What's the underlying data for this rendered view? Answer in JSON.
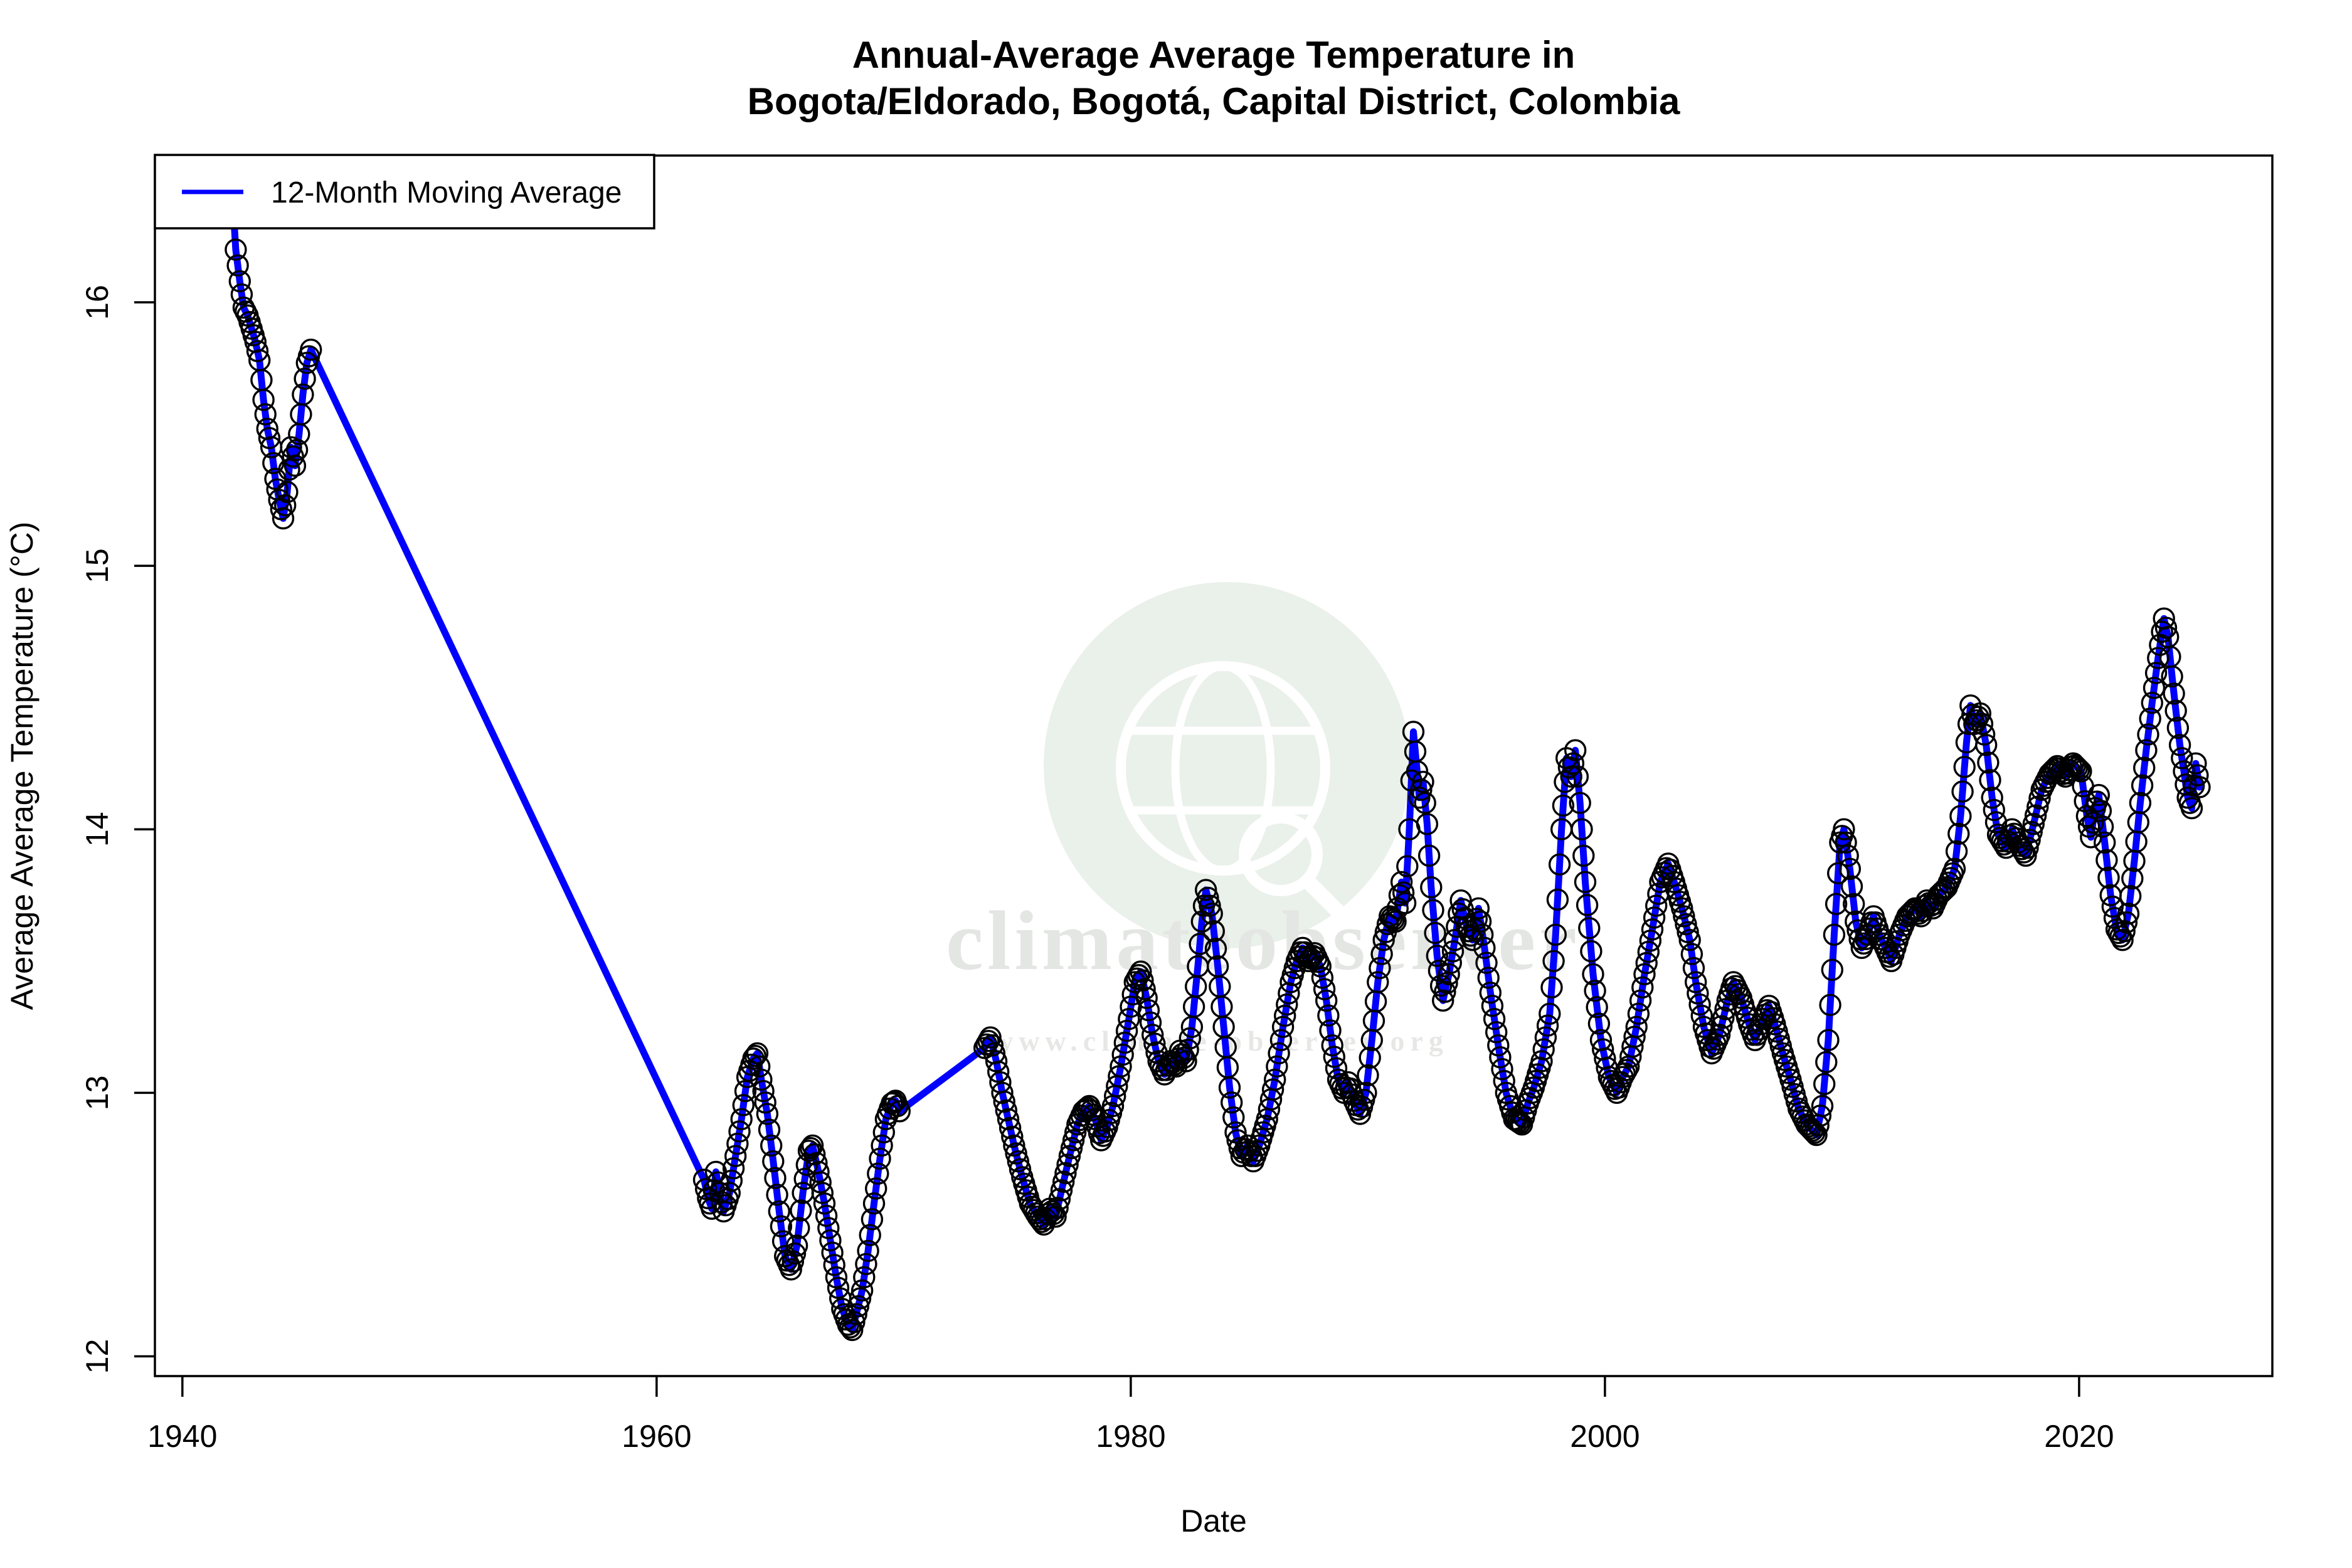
{
  "title": {
    "line1": "Annual-Average Average Temperature in",
    "line2": "Bogota/Eldorado, Bogotá, Capital District, Colombia"
  },
  "x_axis": {
    "label": "Date",
    "ticks": [
      1940,
      1960,
      1980,
      2000,
      2020
    ]
  },
  "y_axis": {
    "label": "Average Average Temperature (°C)",
    "ticks": [
      12,
      13,
      14,
      15,
      16
    ]
  },
  "legend": {
    "label": "12-Month Moving Average",
    "line_color": "#0000ff"
  },
  "watermark": {
    "text": "climateobserver",
    "url": "www.climate-observer.org",
    "icon": "globe-search-icon",
    "circle_fill": "#eaf0ea"
  },
  "style": {
    "series_color": "#0000ff",
    "marker_color": "#000000",
    "marker": "open-circle",
    "axis_color": "#000000"
  },
  "chart_data": {
    "type": "line",
    "title": "Annual-Average Average Temperature in Bogota/Eldorado, Bogotá, Capital District, Colombia",
    "xlabel": "Date",
    "ylabel": "Average Average Temperature (°C)",
    "xlim": [
      1938.84,
      2028.15
    ],
    "ylim": [
      11.925,
      16.557
    ],
    "x_ticks": [
      1940,
      1960,
      1980,
      2000,
      2020
    ],
    "y_ticks": [
      12,
      13,
      14,
      15,
      16
    ],
    "grid": false,
    "legend_position": "topleft",
    "series_name": "12-Month Moving Average",
    "marker_interval_years": 0.0833,
    "segments": [
      {
        "points": [
          [
            1942.08,
            16.45
          ],
          [
            1942.25,
            16.2
          ],
          [
            1942.42,
            16.08
          ],
          [
            1942.58,
            15.98
          ],
          [
            1942.75,
            15.95
          ],
          [
            1942.92,
            15.9
          ],
          [
            1943.08,
            15.85
          ],
          [
            1943.25,
            15.78
          ],
          [
            1943.42,
            15.63
          ],
          [
            1943.58,
            15.52
          ],
          [
            1943.75,
            15.45
          ],
          [
            1943.92,
            15.33
          ],
          [
            1944.08,
            15.25
          ],
          [
            1944.25,
            15.18
          ],
          [
            1944.42,
            15.28
          ],
          [
            1944.58,
            15.45
          ],
          [
            1944.75,
            15.38
          ],
          [
            1944.92,
            15.5
          ],
          [
            1945.08,
            15.65
          ],
          [
            1945.25,
            15.77
          ],
          [
            1945.42,
            15.82
          ]
        ]
      },
      {
        "points": [
          [
            1962.0,
            12.67
          ],
          [
            1962.17,
            12.6
          ],
          [
            1962.33,
            12.56
          ],
          [
            1962.5,
            12.7
          ],
          [
            1962.67,
            12.62
          ],
          [
            1962.83,
            12.55
          ],
          [
            1963.08,
            12.62
          ],
          [
            1963.33,
            12.76
          ],
          [
            1963.58,
            12.9
          ],
          [
            1963.83,
            13.06
          ],
          [
            1964.08,
            13.13
          ],
          [
            1964.25,
            13.15
          ],
          [
            1964.42,
            13.05
          ],
          [
            1964.67,
            12.92
          ],
          [
            1964.92,
            12.74
          ],
          [
            1965.17,
            12.55
          ],
          [
            1965.42,
            12.38
          ],
          [
            1965.67,
            12.33
          ],
          [
            1965.92,
            12.42
          ],
          [
            1966.17,
            12.62
          ],
          [
            1966.42,
            12.78
          ],
          [
            1966.58,
            12.8
          ],
          [
            1966.83,
            12.7
          ],
          [
            1967.08,
            12.58
          ],
          [
            1967.33,
            12.44
          ],
          [
            1967.58,
            12.3
          ],
          [
            1967.83,
            12.18
          ],
          [
            1968.08,
            12.12
          ],
          [
            1968.25,
            12.1
          ],
          [
            1968.42,
            12.16
          ],
          [
            1968.67,
            12.25
          ],
          [
            1968.92,
            12.4
          ],
          [
            1969.17,
            12.58
          ],
          [
            1969.42,
            12.75
          ],
          [
            1969.67,
            12.9
          ],
          [
            1969.92,
            12.96
          ],
          [
            1970.08,
            12.97
          ],
          [
            1970.25,
            12.93
          ]
        ]
      },
      {
        "points": [
          [
            1973.83,
            13.17
          ],
          [
            1974.08,
            13.21
          ],
          [
            1974.33,
            13.12
          ],
          [
            1974.58,
            13.0
          ],
          [
            1974.83,
            12.9
          ],
          [
            1975.08,
            12.8
          ],
          [
            1975.42,
            12.68
          ],
          [
            1975.75,
            12.58
          ],
          [
            1976.08,
            12.53
          ],
          [
            1976.33,
            12.5
          ],
          [
            1976.58,
            12.56
          ],
          [
            1976.83,
            12.53
          ],
          [
            1977.08,
            12.63
          ],
          [
            1977.42,
            12.76
          ],
          [
            1977.75,
            12.88
          ],
          [
            1978.0,
            12.93
          ],
          [
            1978.25,
            12.95
          ],
          [
            1978.5,
            12.9
          ],
          [
            1978.75,
            12.82
          ],
          [
            1979.0,
            12.87
          ],
          [
            1979.25,
            12.95
          ],
          [
            1979.58,
            13.1
          ],
          [
            1979.92,
            13.28
          ],
          [
            1980.17,
            13.42
          ],
          [
            1980.42,
            13.46
          ],
          [
            1980.67,
            13.36
          ],
          [
            1980.92,
            13.22
          ],
          [
            1981.17,
            13.12
          ],
          [
            1981.42,
            13.07
          ],
          [
            1981.67,
            13.12
          ],
          [
            1981.92,
            13.1
          ],
          [
            1982.08,
            13.16
          ],
          [
            1982.33,
            13.12
          ],
          [
            1982.58,
            13.25
          ],
          [
            1982.83,
            13.48
          ],
          [
            1983.0,
            13.65
          ],
          [
            1983.17,
            13.77
          ],
          [
            1983.42,
            13.68
          ],
          [
            1983.67,
            13.48
          ],
          [
            1983.92,
            13.25
          ],
          [
            1984.17,
            13.02
          ],
          [
            1984.42,
            12.85
          ],
          [
            1984.67,
            12.76
          ],
          [
            1984.92,
            12.8
          ],
          [
            1985.17,
            12.74
          ],
          [
            1985.42,
            12.8
          ],
          [
            1985.75,
            12.9
          ],
          [
            1986.08,
            13.05
          ],
          [
            1986.42,
            13.25
          ],
          [
            1986.75,
            13.42
          ],
          [
            1987.0,
            13.5
          ],
          [
            1987.25,
            13.55
          ],
          [
            1987.5,
            13.5
          ],
          [
            1987.75,
            13.53
          ],
          [
            1988.0,
            13.48
          ],
          [
            1988.25,
            13.35
          ],
          [
            1988.5,
            13.18
          ],
          [
            1988.75,
            13.05
          ],
          [
            1989.0,
            13.0
          ],
          [
            1989.17,
            13.04
          ],
          [
            1989.42,
            12.97
          ],
          [
            1989.67,
            12.92
          ],
          [
            1989.92,
            13.0
          ],
          [
            1990.17,
            13.2
          ],
          [
            1990.42,
            13.42
          ],
          [
            1990.67,
            13.58
          ],
          [
            1990.92,
            13.67
          ],
          [
            1991.17,
            13.65
          ],
          [
            1991.42,
            13.8
          ],
          [
            1991.58,
            13.72
          ],
          [
            1991.75,
            14.0
          ],
          [
            1991.92,
            14.37
          ],
          [
            1992.08,
            14.22
          ],
          [
            1992.17,
            14.12
          ],
          [
            1992.33,
            14.18
          ],
          [
            1992.5,
            14.02
          ],
          [
            1992.67,
            13.78
          ],
          [
            1992.92,
            13.52
          ],
          [
            1993.17,
            13.35
          ],
          [
            1993.42,
            13.45
          ],
          [
            1993.67,
            13.58
          ],
          [
            1993.92,
            13.73
          ],
          [
            1994.17,
            13.63
          ],
          [
            1994.42,
            13.58
          ],
          [
            1994.67,
            13.7
          ],
          [
            1994.92,
            13.55
          ],
          [
            1995.17,
            13.38
          ],
          [
            1995.5,
            13.18
          ],
          [
            1995.83,
            13.0
          ],
          [
            1996.17,
            12.9
          ],
          [
            1996.5,
            12.88
          ],
          [
            1996.75,
            12.96
          ],
          [
            1997.0,
            13.02
          ],
          [
            1997.33,
            13.12
          ],
          [
            1997.67,
            13.3
          ],
          [
            1997.92,
            13.6
          ],
          [
            1998.17,
            14.0
          ],
          [
            1998.38,
            14.27
          ],
          [
            1998.58,
            14.2
          ],
          [
            1998.75,
            14.3
          ],
          [
            1998.95,
            14.1
          ],
          [
            1999.17,
            13.8
          ],
          [
            1999.5,
            13.45
          ],
          [
            1999.83,
            13.2
          ],
          [
            2000.17,
            13.06
          ],
          [
            2000.5,
            13.0
          ],
          [
            2000.75,
            13.06
          ],
          [
            2001.0,
            13.1
          ],
          [
            2001.33,
            13.25
          ],
          [
            2001.67,
            13.45
          ],
          [
            2002.0,
            13.62
          ],
          [
            2002.33,
            13.8
          ],
          [
            2002.67,
            13.87
          ],
          [
            2002.92,
            13.8
          ],
          [
            2003.25,
            13.7
          ],
          [
            2003.58,
            13.58
          ],
          [
            2003.83,
            13.42
          ],
          [
            2004.17,
            13.25
          ],
          [
            2004.5,
            13.15
          ],
          [
            2004.83,
            13.22
          ],
          [
            2005.17,
            13.35
          ],
          [
            2005.42,
            13.42
          ],
          [
            2005.75,
            13.36
          ],
          [
            2006.08,
            13.26
          ],
          [
            2006.33,
            13.2
          ],
          [
            2006.67,
            13.28
          ],
          [
            2006.92,
            13.33
          ],
          [
            2007.17,
            13.26
          ],
          [
            2007.5,
            13.15
          ],
          [
            2007.83,
            13.05
          ],
          [
            2008.17,
            12.94
          ],
          [
            2008.5,
            12.88
          ],
          [
            2008.92,
            12.84
          ],
          [
            2009.17,
            12.95
          ],
          [
            2009.42,
            13.2
          ],
          [
            2009.67,
            13.6
          ],
          [
            2009.92,
            13.95
          ],
          [
            2010.08,
            14.0
          ],
          [
            2010.33,
            13.85
          ],
          [
            2010.58,
            13.65
          ],
          [
            2010.83,
            13.55
          ],
          [
            2011.08,
            13.6
          ],
          [
            2011.33,
            13.67
          ],
          [
            2011.58,
            13.6
          ],
          [
            2011.83,
            13.55
          ],
          [
            2012.08,
            13.5
          ],
          [
            2012.42,
            13.6
          ],
          [
            2012.75,
            13.67
          ],
          [
            2013.08,
            13.7
          ],
          [
            2013.33,
            13.67
          ],
          [
            2013.58,
            13.73
          ],
          [
            2013.83,
            13.7
          ],
          [
            2014.08,
            13.75
          ],
          [
            2014.42,
            13.78
          ],
          [
            2014.75,
            13.85
          ],
          [
            2015.0,
            14.05
          ],
          [
            2015.25,
            14.33
          ],
          [
            2015.42,
            14.47
          ],
          [
            2015.58,
            14.4
          ],
          [
            2015.83,
            14.44
          ],
          [
            2016.08,
            14.32
          ],
          [
            2016.33,
            14.12
          ],
          [
            2016.58,
            13.98
          ],
          [
            2016.92,
            13.93
          ],
          [
            2017.17,
            14.0
          ],
          [
            2017.42,
            13.95
          ],
          [
            2017.75,
            13.9
          ],
          [
            2018.08,
            14.02
          ],
          [
            2018.42,
            14.15
          ],
          [
            2018.75,
            14.21
          ],
          [
            2019.08,
            14.24
          ],
          [
            2019.42,
            14.2
          ],
          [
            2019.75,
            14.25
          ],
          [
            2020.08,
            14.22
          ],
          [
            2020.33,
            14.05
          ],
          [
            2020.5,
            13.97
          ],
          [
            2020.67,
            14.08
          ],
          [
            2020.83,
            14.13
          ],
          [
            2021.08,
            13.95
          ],
          [
            2021.33,
            13.75
          ],
          [
            2021.58,
            13.62
          ],
          [
            2021.83,
            13.58
          ],
          [
            2022.08,
            13.68
          ],
          [
            2022.33,
            13.88
          ],
          [
            2022.58,
            14.1
          ],
          [
            2022.83,
            14.3
          ],
          [
            2023.08,
            14.48
          ],
          [
            2023.33,
            14.65
          ],
          [
            2023.58,
            14.8
          ],
          [
            2023.75,
            14.73
          ],
          [
            2023.92,
            14.58
          ],
          [
            2024.08,
            14.45
          ],
          [
            2024.25,
            14.32
          ],
          [
            2024.42,
            14.22
          ],
          [
            2024.58,
            14.12
          ],
          [
            2024.75,
            14.08
          ],
          [
            2024.92,
            14.25
          ],
          [
            2025.08,
            14.16
          ]
        ]
      }
    ]
  }
}
